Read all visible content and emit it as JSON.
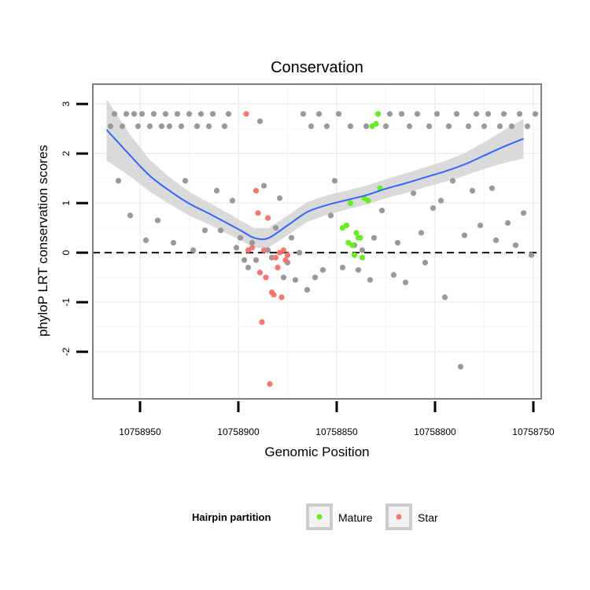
{
  "chart_data": {
    "type": "scatter",
    "title": "Conservation",
    "xlabel": "Genomic Position",
    "ylabel": "phyloP LRT conservation scores",
    "x_reversed": true,
    "xlim": [
      10758974,
      10758746
    ],
    "ylim": [
      -2.95,
      3.4
    ],
    "x_ticks": [
      10758950,
      10758900,
      10758850,
      10758800,
      10758750
    ],
    "x_tick_labels": [
      "10758950",
      "10758900",
      "10758850",
      "10758800",
      "10758750"
    ],
    "y_ticks": [
      -2,
      -1,
      0,
      1,
      2,
      3
    ],
    "y_tick_labels": [
      "-2",
      "-1",
      "0",
      "1",
      "2",
      "3"
    ],
    "reference_line": {
      "y": 0,
      "style": "dashed",
      "color": "#000000"
    },
    "legend": {
      "title": "Hairpin partition",
      "position": "bottom",
      "entries": [
        {
          "label": "Mature",
          "color": "#66ee22"
        },
        {
          "label": "Star",
          "color": "#f8766d"
        }
      ]
    },
    "colors": {
      "other": "#999999",
      "mature": "#66ee22",
      "star": "#f8766d",
      "smooth": "#3366ff",
      "band": "#d6d6d6",
      "grid": "#eeeeee",
      "frame": "#7f7f7f"
    },
    "smooth": {
      "x": [
        10758967,
        10758955,
        10758945,
        10758935,
        10758925,
        10758915,
        10758905,
        10758898,
        10758892,
        10758885,
        10758875,
        10758865,
        10758855,
        10758845,
        10758835,
        10758825,
        10758815,
        10758805,
        10758795,
        10758785,
        10758775,
        10758765,
        10758755
      ],
      "y": [
        2.48,
        1.96,
        1.55,
        1.25,
        0.99,
        0.79,
        0.58,
        0.43,
        0.3,
        0.29,
        0.55,
        0.82,
        0.96,
        1.06,
        1.16,
        1.29,
        1.4,
        1.52,
        1.64,
        1.78,
        1.96,
        2.14,
        2.3
      ],
      "se": [
        0.62,
        0.42,
        0.32,
        0.27,
        0.24,
        0.22,
        0.21,
        0.2,
        0.2,
        0.2,
        0.2,
        0.2,
        0.2,
        0.19,
        0.19,
        0.19,
        0.2,
        0.2,
        0.21,
        0.23,
        0.27,
        0.33,
        0.4
      ]
    },
    "series": [
      {
        "name": "Other",
        "color": "#999999",
        "x": [
          10758965,
          10758963,
          10758961,
          10758959,
          10758957,
          10758955,
          10758953,
          10758951,
          10758949,
          10758947,
          10758945,
          10758943,
          10758941,
          10758939,
          10758937,
          10758935,
          10758933,
          10758931,
          10758929,
          10758927,
          10758925,
          10758923,
          10758921,
          10758919,
          10758917,
          10758915,
          10758913,
          10758911,
          10758909,
          10758907,
          10758905,
          10758903,
          10758901,
          10758899,
          10758897,
          10758895,
          10758893,
          10758891,
          10758889,
          10758887,
          10758885,
          10758883,
          10758881,
          10758879,
          10758877,
          10758875,
          10758873,
          10758871,
          10758869,
          10758867,
          10758865,
          10758863,
          10758861,
          10758859,
          10758857,
          10758855,
          10758853,
          10758851,
          10758849,
          10758847,
          10758845,
          10758843,
          10758841,
          10758839,
          10758837,
          10758835,
          10758833,
          10758831,
          10758829,
          10758827,
          10758825,
          10758823,
          10758821,
          10758819,
          10758817,
          10758815,
          10758813,
          10758811,
          10758809,
          10758807,
          10758805,
          10758803,
          10758801,
          10758799,
          10758797,
          10758795,
          10758793,
          10758791,
          10758789,
          10758787,
          10758785,
          10758783,
          10758781,
          10758779,
          10758777,
          10758775,
          10758773,
          10758771,
          10758769,
          10758767,
          10758765,
          10758763,
          10758761,
          10758759,
          10758757,
          10758755,
          10758753,
          10758751,
          10758749
        ],
        "y": [
          2.55,
          2.8,
          1.45,
          2.55,
          2.8,
          0.75,
          2.8,
          2.55,
          2.8,
          0.25,
          2.55,
          2.8,
          0.65,
          2.55,
          2.8,
          2.55,
          0.2,
          2.8,
          2.55,
          1.45,
          2.8,
          0.05,
          2.55,
          2.8,
          0.45,
          2.55,
          2.8,
          1.25,
          0.45,
          2.55,
          2.8,
          1.05,
          0.1,
          0.3,
          -0.15,
          -0.3,
          0.2,
          -0.15,
          2.65,
          1.35,
          0.05,
          -0.1,
          0.5,
          1.1,
          -0.5,
          -0.2,
          0.3,
          -0.55,
          0.0,
          2.8,
          -0.75,
          2.55,
          -0.5,
          2.8,
          -0.35,
          2.55,
          0.75,
          1.45,
          2.8,
          -0.3,
          0.55,
          2.55,
          0.15,
          -0.35,
          0.05,
          2.55,
          -0.55,
          0.3,
          2.8,
          0.85,
          2.55,
          2.8,
          -0.45,
          0.2,
          2.8,
          -0.6,
          2.55,
          1.2,
          2.8,
          0.4,
          -0.2,
          2.55,
          0.9,
          2.8,
          1.05,
          -0.9,
          2.55,
          1.45,
          2.8,
          -2.3,
          0.35,
          2.55,
          1.25,
          2.8,
          0.55,
          2.55,
          2.8,
          1.3,
          0.25,
          2.55,
          2.8,
          0.6,
          2.55,
          0.15,
          2.8,
          0.8,
          2.55,
          -0.05,
          2.8
        ]
      },
      {
        "name": "Mature",
        "color": "#66ee22",
        "x": [
          10758847,
          10758845,
          10758844,
          10758843,
          10758842,
          10758841,
          10758840,
          10758839,
          10758838,
          10758837,
          10758836,
          10758834,
          10758832,
          10758830,
          10758829,
          10758828
        ],
        "y": [
          0.5,
          0.55,
          0.2,
          1.0,
          0.15,
          -0.05,
          0.4,
          0.3,
          0.3,
          -0.1,
          1.1,
          1.05,
          2.55,
          2.6,
          2.8,
          1.3
        ]
      },
      {
        "name": "Star",
        "color": "#f8766d",
        "x": [
          10758896,
          10758895,
          10758893,
          10758891,
          10758890,
          10758889,
          10758888,
          10758887,
          10758886,
          10758885,
          10758884,
          10758883,
          10758882,
          10758881,
          10758880,
          10758879,
          10758878,
          10758877,
          10758876,
          10758875
        ],
        "y": [
          2.8,
          0.05,
          0.1,
          1.25,
          0.8,
          -0.4,
          -1.4,
          0.05,
          -0.5,
          0.7,
          -2.65,
          -0.8,
          -0.85,
          -0.1,
          -0.3,
          0.0,
          -0.9,
          0.05,
          -0.15,
          -0.05
        ]
      }
    ]
  }
}
